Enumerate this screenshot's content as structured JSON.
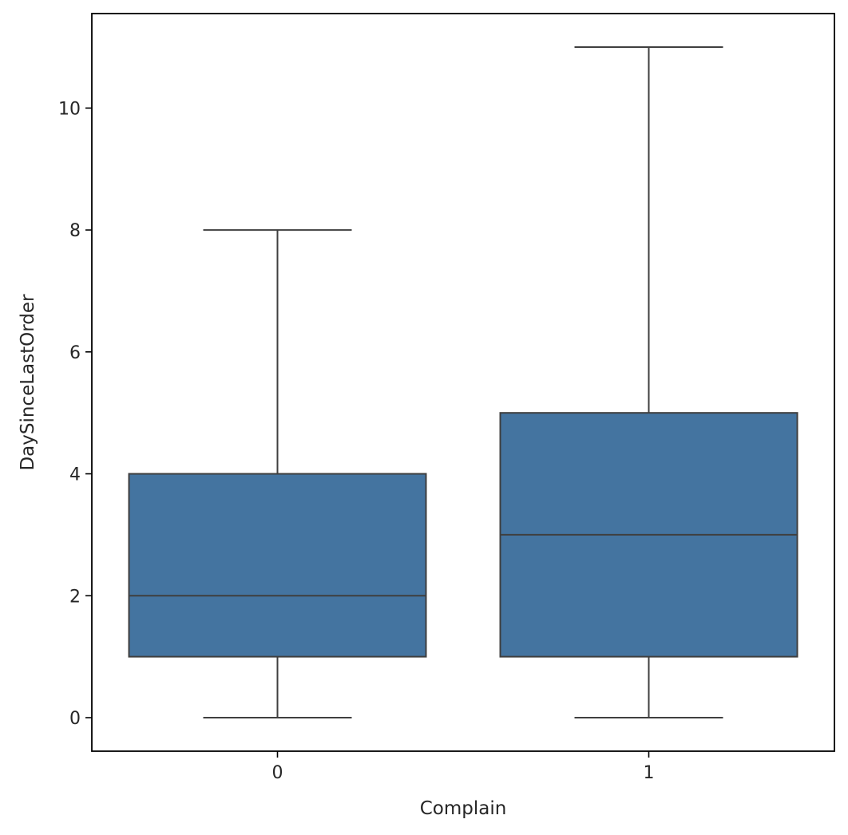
{
  "chart_data": {
    "type": "box",
    "title": "",
    "xlabel": "Complain",
    "ylabel": "DaySinceLastOrder",
    "categories": [
      "0",
      "1"
    ],
    "ylim": [
      -0.55,
      11.55
    ],
    "yticks": [
      0,
      2,
      4,
      6,
      8,
      10
    ],
    "box_color": "#4474a0",
    "line_color": "#3f3f3f",
    "grid": false,
    "boxes": [
      {
        "category": "0",
        "whisker_low": 0,
        "q1": 1,
        "median": 2,
        "q3": 4,
        "whisker_high": 8
      },
      {
        "category": "1",
        "whisker_low": 0,
        "q1": 1,
        "median": 3,
        "q3": 5,
        "whisker_high": 11
      }
    ]
  }
}
